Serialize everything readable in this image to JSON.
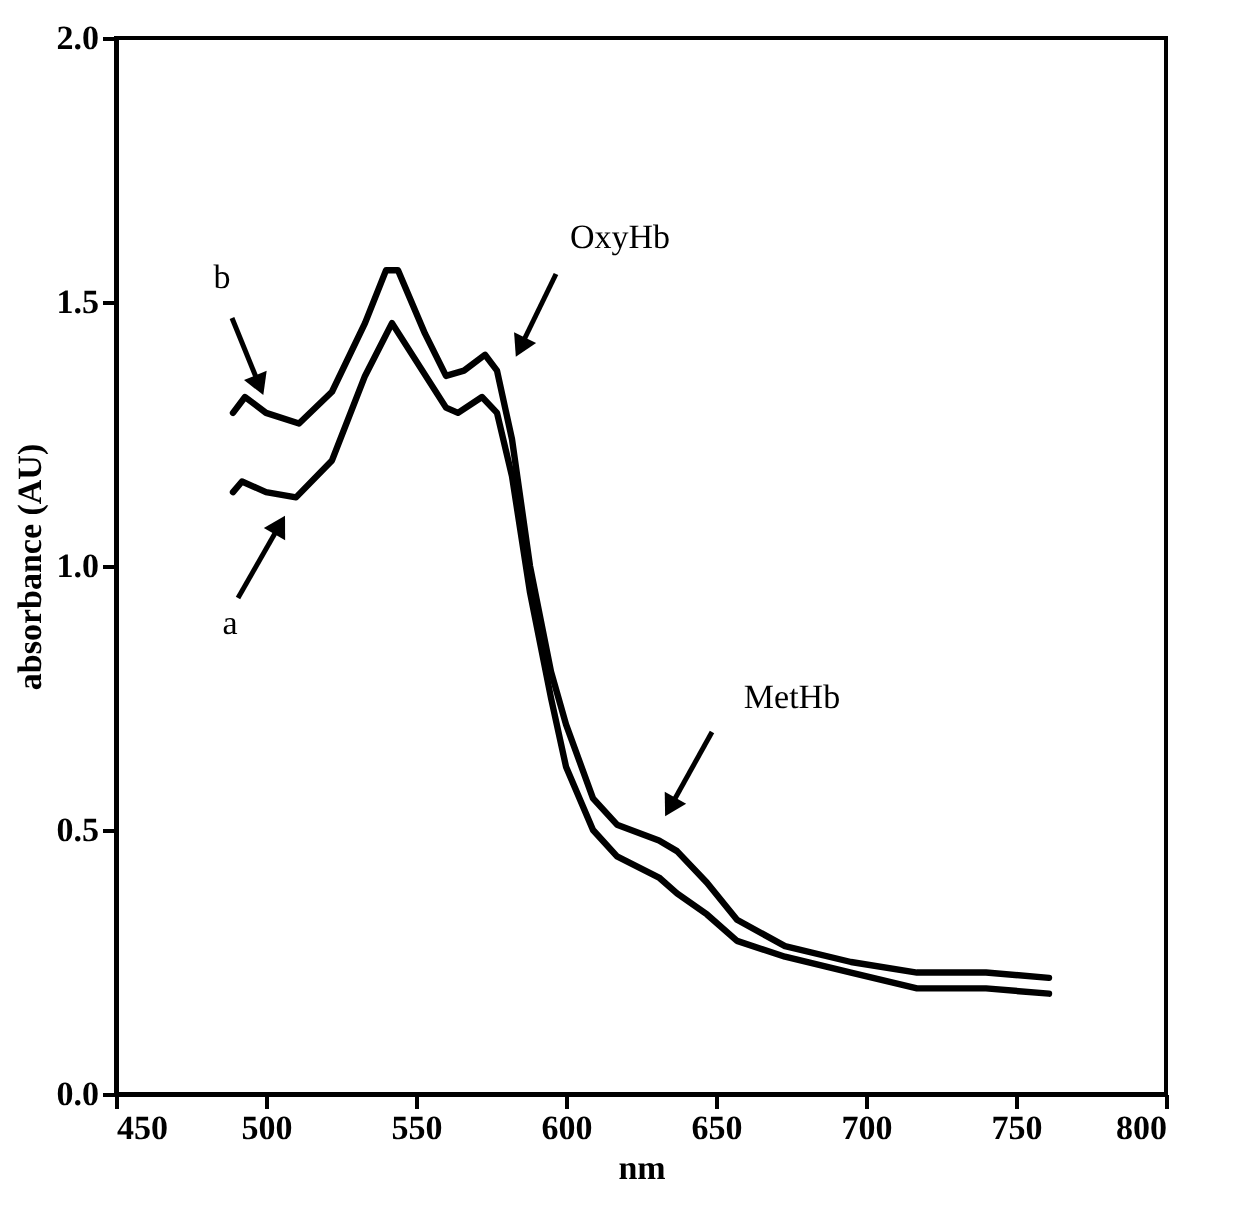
{
  "chart_data": {
    "type": "line",
    "xlabel": "nm",
    "ylabel": "absorbance (AU)",
    "xlim": [
      450,
      800
    ],
    "xticks": [
      450,
      500,
      550,
      600,
      650,
      700,
      750,
      800
    ],
    "ylim": [
      0,
      2.0
    ],
    "yticks": [
      {
        "value": 0,
        "label": "0.0"
      },
      {
        "value": 0.5,
        "label": "0.5"
      },
      {
        "value": 1.0,
        "label": "1.0"
      },
      {
        "value": 1.5,
        "label": "1.5"
      },
      {
        "value": 2.0,
        "label": "2.0"
      }
    ],
    "grid": false,
    "marker": "none",
    "line_style": "solid",
    "series": [
      {
        "color": "#000000",
        "x": [
          489,
          492,
          500,
          510,
          522,
          533,
          542,
          551,
          560,
          564,
          572,
          577,
          582,
          588,
          595,
          600,
          609,
          617,
          631,
          637,
          647,
          657,
          673,
          695,
          717,
          740,
          761
        ],
        "values": [
          1.14,
          1.16,
          1.14,
          1.13,
          1.2,
          1.36,
          1.46,
          1.38,
          1.3,
          1.29,
          1.32,
          1.29,
          1.17,
          0.95,
          0.75,
          0.62,
          0.5,
          0.45,
          0.41,
          0.38,
          0.34,
          0.29,
          0.26,
          0.23,
          0.2,
          0.2,
          0.19
        ]
      },
      {
        "color": "#000000",
        "x": [
          489,
          493,
          500,
          511,
          522,
          533,
          540,
          544,
          553,
          560,
          566,
          573,
          577,
          582,
          588,
          595,
          600,
          609,
          617,
          631,
          637,
          647,
          657,
          673,
          695,
          717,
          740,
          761
        ],
        "values": [
          1.29,
          1.32,
          1.29,
          1.27,
          1.33,
          1.46,
          1.56,
          1.56,
          1.44,
          1.36,
          1.37,
          1.4,
          1.37,
          1.24,
          1.0,
          0.8,
          0.7,
          0.56,
          0.51,
          0.48,
          0.46,
          0.4,
          0.33,
          0.28,
          0.25,
          0.23,
          0.23,
          0.22
        ]
      }
    ],
    "annotations": [
      "b",
      "a",
      "OxyHb",
      "MetHb"
    ]
  }
}
